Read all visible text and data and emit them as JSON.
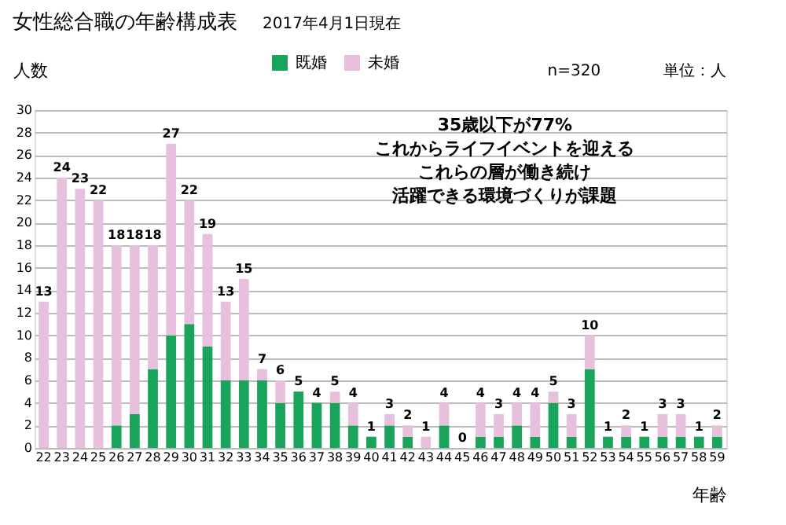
{
  "chart_data": {
    "type": "bar",
    "stacked": true,
    "title": "女性総合職の年齢構成表",
    "subtitle": "2017年4月1日現在",
    "ylabel": "人数",
    "xlabel": "年齢",
    "categories": [
      "22",
      "23",
      "24",
      "25",
      "26",
      "27",
      "28",
      "29",
      "30",
      "31",
      "32",
      "33",
      "34",
      "35",
      "36",
      "37",
      "38",
      "39",
      "40",
      "41",
      "42",
      "43",
      "44",
      "45",
      "46",
      "47",
      "48",
      "49",
      "50",
      "51",
      "52",
      "53",
      "54",
      "55",
      "56",
      "57",
      "58",
      "59"
    ],
    "series": [
      {
        "name": "既婚",
        "color": "#1aa35a",
        "values": [
          0,
          0,
          0,
          0,
          2,
          3,
          7,
          10,
          11,
          9,
          6,
          6,
          6,
          4,
          5,
          4,
          4,
          2,
          1,
          2,
          1,
          0,
          2,
          0,
          1,
          1,
          2,
          1,
          4,
          1,
          7,
          1,
          1,
          1,
          1,
          1,
          1,
          1
        ]
      },
      {
        "name": "未婚",
        "color": "#e6c0dd",
        "values": [
          13,
          24,
          23,
          22,
          16,
          15,
          11,
          17,
          11,
          10,
          7,
          9,
          1,
          2,
          0,
          0,
          1,
          2,
          0,
          1,
          1,
          1,
          2,
          0,
          3,
          2,
          2,
          3,
          1,
          2,
          3,
          0,
          1,
          0,
          2,
          2,
          0,
          1
        ]
      }
    ],
    "totals": [
      "13",
      "24",
      "23",
      "22",
      "18",
      "18",
      "18",
      "27",
      "22",
      "19",
      "13",
      "15",
      "7",
      "6",
      "5",
      "4",
      "5",
      "4",
      "1",
      "3",
      "2",
      "1",
      "4",
      "0",
      "4",
      "3",
      "4",
      "4",
      "5",
      "3",
      "10",
      "1",
      "2",
      "1",
      "3",
      "3",
      "1",
      "2"
    ],
    "ylim": [
      0,
      30
    ],
    "yticks": [
      0,
      2,
      4,
      6,
      8,
      10,
      12,
      14,
      16,
      18,
      20,
      22,
      24,
      26,
      28,
      30
    ],
    "grid": "y",
    "legend": "top",
    "annotations": [
      "35歳以下が77%",
      "これからライフイベントを迎える",
      "これらの層が働き続け",
      "活躍できる環境づくりが課題",
      "n=320",
      "単位：人"
    ]
  }
}
